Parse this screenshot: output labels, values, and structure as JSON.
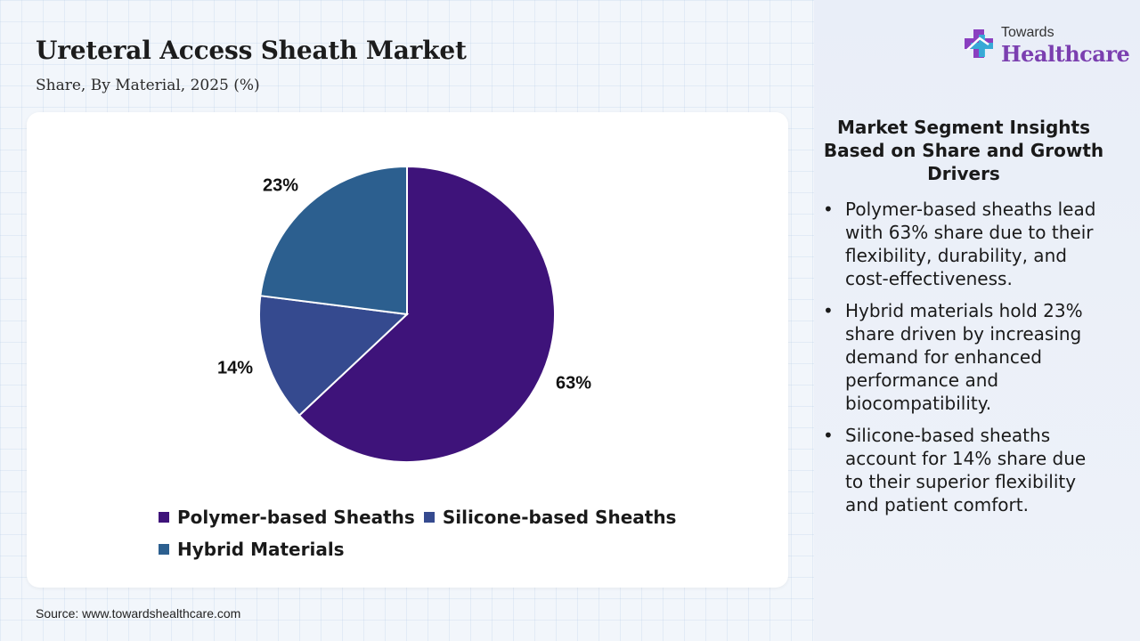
{
  "header": {
    "title": "Ureteral Access Sheath Market",
    "subtitle": "Share, By Material, 2025 (%)"
  },
  "logo": {
    "line1": "Towards",
    "line2": "Healthcare",
    "icon": "cross-plus-icon"
  },
  "chart_data": {
    "type": "pie",
    "categories": [
      "Polymer-based Sheaths",
      "Silicone-based Sheaths",
      "Hybrid Materials"
    ],
    "values": [
      63,
      14,
      23
    ],
    "labels": [
      "63%",
      "14%",
      "23%"
    ],
    "colors": [
      "#3e137a",
      "#354a8f",
      "#2c5f8f"
    ],
    "legend_placement": "bottom",
    "start_angle_deg": 0,
    "direction": "clockwise"
  },
  "insights": {
    "title": "Market Segment Insights Based on Share and Growth Drivers",
    "bullet_char": "•",
    "items": [
      "Polymer-based sheaths lead with 63% share due to their flexibility, durability, and cost-effectiveness.",
      "Hybrid materials hold 23% share driven by increasing demand for enhanced performance and biocompatibility.",
      "Silicone-based sheaths account for 14% share due to their superior flexibility and patient comfort."
    ]
  },
  "source": "Source: www.towardshealthcare.com"
}
